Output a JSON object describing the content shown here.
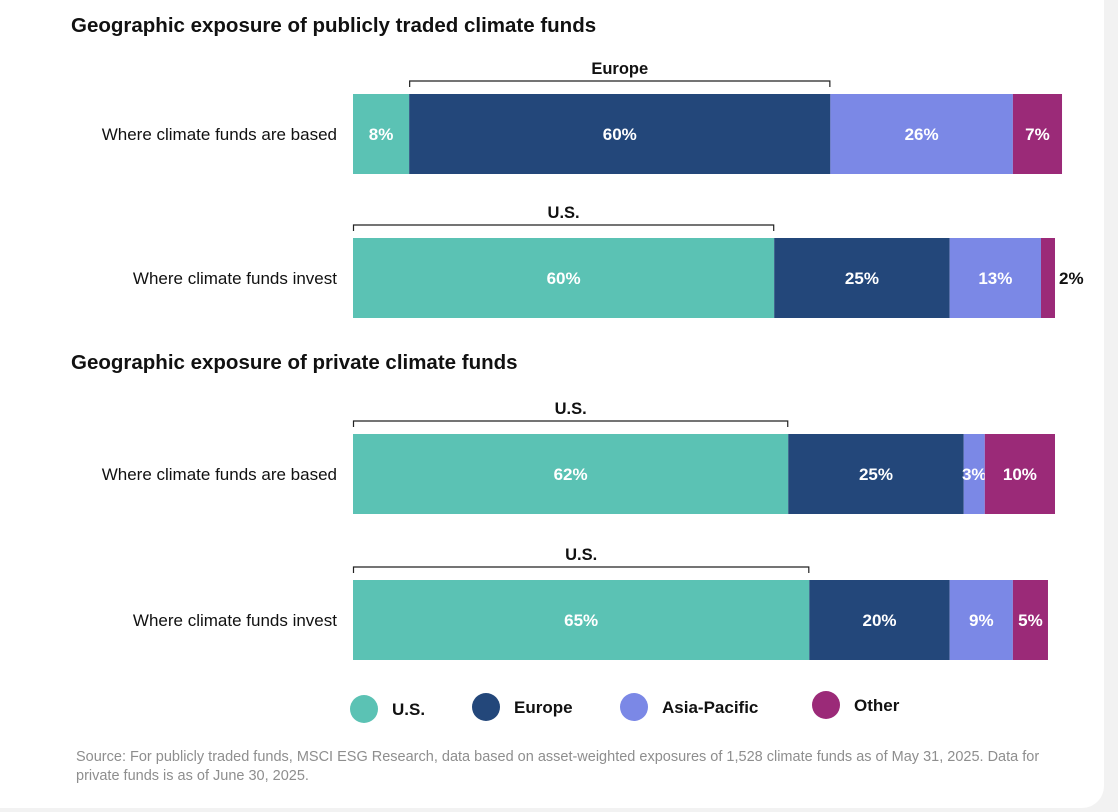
{
  "chart_data": [
    {
      "type": "bar",
      "orientation": "horizontal",
      "stacked": true,
      "normalized": true,
      "title": "Geographic exposure of publicly traded climate funds",
      "categories": [
        "Where climate funds are based",
        "Where climate funds invest"
      ],
      "series": [
        {
          "name": "U.S.",
          "values": [
            8,
            60
          ]
        },
        {
          "name": "Europe",
          "values": [
            60,
            25
          ]
        },
        {
          "name": "Asia-Pacific",
          "values": [
            26,
            13
          ]
        },
        {
          "name": "Other",
          "values": [
            7,
            2
          ]
        }
      ],
      "data_labels": [
        [
          "8%",
          "60%",
          "26%",
          "7%"
        ],
        [
          "60%",
          "25%",
          "13%",
          "2%"
        ]
      ],
      "highlight_brackets": [
        "Europe",
        "U.S."
      ]
    },
    {
      "type": "bar",
      "orientation": "horizontal",
      "stacked": true,
      "normalized": true,
      "title": "Geographic exposure of private climate funds",
      "categories": [
        "Where climate funds are based",
        "Where climate funds invest"
      ],
      "series": [
        {
          "name": "U.S.",
          "values": [
            62,
            65
          ]
        },
        {
          "name": "Europe",
          "values": [
            25,
            20
          ]
        },
        {
          "name": "Asia-Pacific",
          "values": [
            3,
            9
          ]
        },
        {
          "name": "Other",
          "values": [
            10,
            5
          ]
        }
      ],
      "data_labels": [
        [
          "62%",
          "25%",
          "3%",
          "10%"
        ],
        [
          "65%",
          "20%",
          "9%",
          "5%"
        ]
      ],
      "highlight_brackets": [
        "U.S.",
        "U.S."
      ]
    }
  ],
  "legend": {
    "placement": "bottom",
    "items": [
      {
        "name": "U.S.",
        "color": "#5bc2b4"
      },
      {
        "name": "Europe",
        "color": "#23477a"
      },
      {
        "name": "Asia-Pacific",
        "color": "#7b88e6"
      },
      {
        "name": "Other",
        "color": "#9b2a78"
      }
    ]
  },
  "colors": {
    "segment_label_light": "#ffffff",
    "segment_label_dark": "#111111"
  },
  "source": "Source: For publicly traded funds, MSCI ESG Research, data based on asset-weighted exposures of 1,528 climate funds as of May 31, 2025. Data for private funds is as of June 30, 2025."
}
